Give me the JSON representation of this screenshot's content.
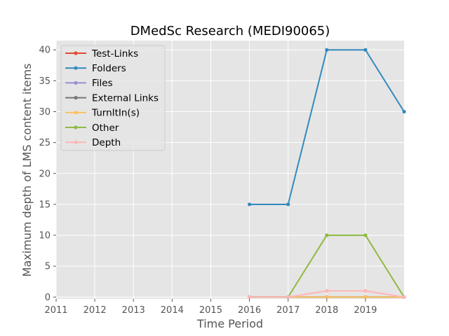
{
  "chart_data": {
    "type": "line",
    "title": "DMedSc Research (MEDI90065)",
    "xlabel": "Time Period",
    "ylabel": "Maximum depth of LMS content items",
    "x": [
      2016,
      2017,
      2018,
      2019,
      2020
    ],
    "xlim": [
      2011,
      2020
    ],
    "ylim": [
      -0.3,
      41.5
    ],
    "xticks": [
      2011,
      2012,
      2013,
      2014,
      2015,
      2016,
      2017,
      2018,
      2019
    ],
    "yticks": [
      0,
      5,
      10,
      15,
      20,
      25,
      30,
      35,
      40
    ],
    "grid": true,
    "legend_position": "top-left",
    "series": [
      {
        "name": "Test-Links",
        "color": "#e24a33",
        "values": [
          0,
          0,
          0,
          0,
          0
        ]
      },
      {
        "name": "Folders",
        "color": "#348abd",
        "values": [
          15,
          15,
          40,
          40,
          30
        ]
      },
      {
        "name": "Files",
        "color": "#988ed5",
        "values": [
          0,
          0,
          0,
          0,
          0
        ]
      },
      {
        "name": "External Links",
        "color": "#777777",
        "values": [
          0,
          0,
          0,
          0,
          0
        ]
      },
      {
        "name": "TurnItIn(s)",
        "color": "#fbc15e",
        "values": [
          0,
          0,
          0,
          0,
          0
        ]
      },
      {
        "name": "Other",
        "color": "#8eba42",
        "values": [
          0,
          0,
          10,
          10,
          0
        ]
      },
      {
        "name": "Depth",
        "color": "#ffb5b8",
        "values": [
          0,
          0,
          1,
          1,
          0
        ]
      }
    ]
  }
}
